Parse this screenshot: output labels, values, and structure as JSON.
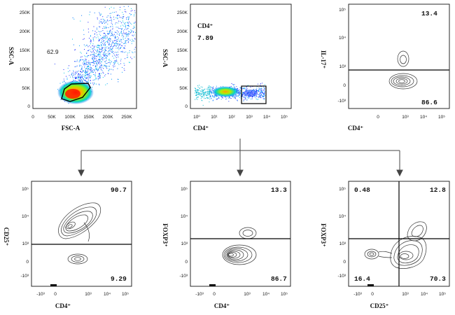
{
  "chart_data": [
    {
      "id": "p1",
      "type": "scatter",
      "title": "",
      "xlabel": "FSC-A",
      "ylabel": "SSC-A",
      "x_scale": "linear",
      "y_scale": "linear",
      "xlim": [
        0,
        262144
      ],
      "ylim": [
        0,
        262144
      ],
      "x_ticks": [
        "0",
        "50K",
        "100K",
        "150K",
        "200K",
        "250K"
      ],
      "y_ticks": [
        "0",
        "50K",
        "100K",
        "150K",
        "200K",
        "250K"
      ],
      "gate": {
        "shape": "polygon",
        "percent": "62.9"
      },
      "annotations": [
        "62.9"
      ]
    },
    {
      "id": "p2",
      "type": "scatter",
      "title": "",
      "xlabel": "CD4⁺",
      "ylabel": "SSC-A",
      "x_scale": "log",
      "y_scale": "linear",
      "xlim": [
        1,
        100000
      ],
      "ylim": [
        0,
        262144
      ],
      "x_ticks": [
        "10⁰",
        "10¹",
        "10²",
        "10³",
        "10⁴",
        "10⁵"
      ],
      "y_ticks": [
        "0",
        "50K",
        "100K",
        "150K",
        "200K",
        "250K"
      ],
      "gate": {
        "shape": "rectangle",
        "name": "CD4⁺",
        "percent": "7.89"
      },
      "annotations": [
        "CD4⁺",
        "7.89"
      ]
    },
    {
      "id": "p3",
      "type": "contour",
      "xlabel": "CD4⁺",
      "ylabel": "IL-17⁺",
      "x_scale": "biexponential",
      "y_scale": "biexponential",
      "x_ticks": [
        "0",
        "10³",
        "10⁴",
        "10⁵"
      ],
      "y_ticks": [
        "-10³",
        "0",
        "10³",
        "10⁴",
        "10⁵"
      ],
      "quadrants": {
        "top": "13.4",
        "bottom": "86.6"
      }
    },
    {
      "id": "p4",
      "type": "contour",
      "xlabel": "CD4⁺",
      "ylabel": "CD25⁺",
      "x_scale": "biexponential",
      "y_scale": "biexponential",
      "x_ticks": [
        "-10³",
        "0",
        "10³",
        "10⁴",
        "10⁵"
      ],
      "y_ticks": [
        "-10³",
        "0",
        "10³",
        "10⁴",
        "10⁵"
      ],
      "quadrants": {
        "top": "90.7",
        "bottom": "9.29"
      }
    },
    {
      "id": "p5",
      "type": "contour",
      "xlabel": "CD4⁺",
      "ylabel": "FOXP3⁺",
      "x_scale": "biexponential",
      "y_scale": "biexponential",
      "x_ticks": [
        "-10³",
        "0",
        "10³",
        "10⁴",
        "10⁵"
      ],
      "y_ticks": [
        "-10³",
        "0",
        "10³",
        "10⁴",
        "10⁵"
      ],
      "quadrants": {
        "top": "13.3",
        "bottom": "86.7"
      }
    },
    {
      "id": "p6",
      "type": "contour",
      "xlabel": "CD25⁺",
      "ylabel": "FOXP3⁺",
      "x_scale": "biexponential",
      "y_scale": "biexponential",
      "x_ticks": [
        "-10³",
        "0",
        "10³",
        "10⁴",
        "10⁵"
      ],
      "y_ticks": [
        "-10³",
        "0",
        "10³",
        "10⁴",
        "10⁵"
      ],
      "quadrants": {
        "top_left": "0.48",
        "top_right": "12.8",
        "bottom_left": "16.4",
        "bottom_right": "70.3"
      }
    }
  ],
  "colors": {
    "axis": "#111111",
    "contour": "#333333",
    "density_low": "#1a1aff",
    "density_mid": "#00e0c0",
    "density_high": "#ff2000"
  }
}
